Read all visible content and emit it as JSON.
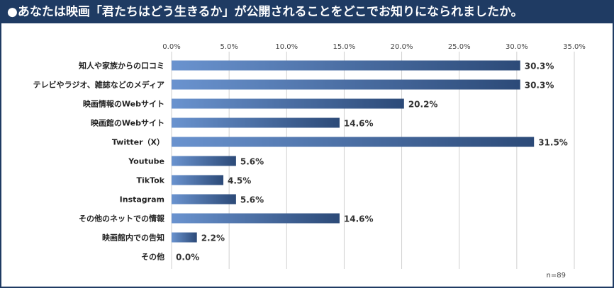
{
  "title": "●あなたは映画「君たちはどう生きるか」が公開されることをどこでお知りになられましたか。",
  "chart_data": {
    "type": "bar",
    "orientation": "horizontal",
    "categories": [
      "知人や家族からの口コミ",
      "テレビやラジオ、雑誌などのメディア",
      "映画情報のWebサイト",
      "映画館のWebサイト",
      "Twitter（X）",
      "Youtube",
      "TikTok",
      "Instagram",
      "その他のネットでの情報",
      "映画館内での告知",
      "その他"
    ],
    "values": [
      30.3,
      30.3,
      20.2,
      14.6,
      31.5,
      5.6,
      4.5,
      5.6,
      14.6,
      2.2,
      0.0
    ],
    "value_labels": [
      "30.3%",
      "30.3%",
      "20.2%",
      "14.6%",
      "31.5%",
      "5.6%",
      "4.5%",
      "5.6%",
      "14.6%",
      "2.2%",
      "0.0%"
    ],
    "xlim": [
      0,
      35
    ],
    "ticks": [
      "0.0%",
      "5.0%",
      "10.0%",
      "15.0%",
      "20.0%",
      "25.0%",
      "30.0%",
      "35.0%"
    ],
    "tick_values": [
      0,
      5,
      10,
      15,
      20,
      25,
      30,
      35
    ],
    "grid": true,
    "note": "n=89",
    "colors": {
      "bar_dark": "#2c4a78",
      "bar_light": "#6a93cf",
      "grid": "#cfcfcf",
      "title_bg": "#1f3b63"
    }
  }
}
